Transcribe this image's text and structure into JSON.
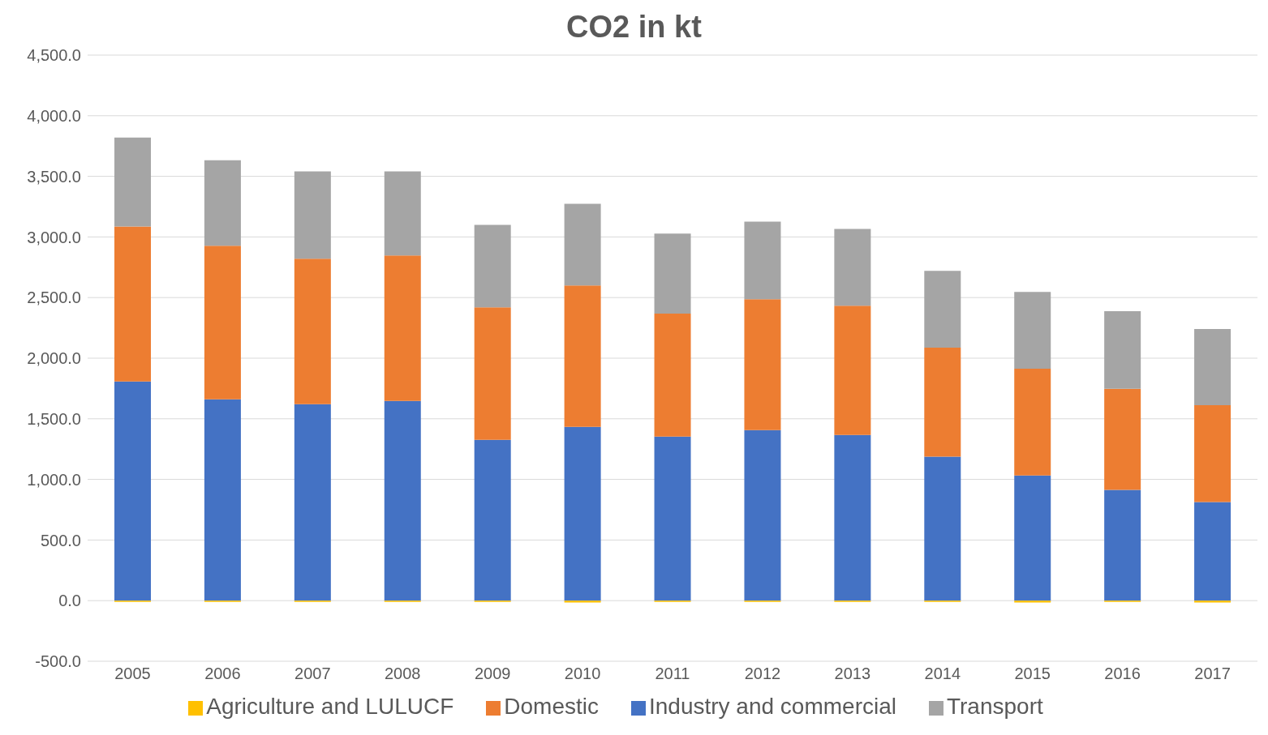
{
  "chart_data": {
    "type": "bar",
    "title": "CO2 in kt",
    "stacked": true,
    "categories": [
      "2005",
      "2006",
      "2007",
      "2008",
      "2009",
      "2010",
      "2011",
      "2012",
      "2013",
      "2014",
      "2015",
      "2016",
      "2017"
    ],
    "series": [
      {
        "name": "Industry and commercial",
        "color": "#4472c4",
        "values": [
          1807,
          1660,
          1620,
          1647,
          1327,
          1433,
          1353,
          1407,
          1367,
          1187,
          1033,
          913,
          813
        ]
      },
      {
        "name": "Domestic",
        "color": "#ed7d31",
        "values": [
          1280,
          1267,
          1200,
          1200,
          1093,
          1167,
          1014,
          1080,
          1066,
          900,
          880,
          834,
          800
        ]
      },
      {
        "name": "Transport",
        "color": "#a5a5a5",
        "values": [
          733,
          706,
          720,
          693,
          680,
          673,
          660,
          640,
          634,
          633,
          634,
          640,
          627
        ]
      },
      {
        "name": "Agriculture and LULUCF",
        "color": "#ffc000",
        "values": [
          -10,
          -10,
          -10,
          -10,
          -10,
          -15,
          -10,
          -10,
          -10,
          -10,
          -15,
          -10,
          -15
        ]
      }
    ],
    "ylim": [
      -500,
      4500
    ],
    "yticks": [
      {
        "value": -500,
        "label": "-500.0"
      },
      {
        "value": 0,
        "label": "0.0"
      },
      {
        "value": 500,
        "label": "500.0"
      },
      {
        "value": 1000,
        "label": "1,000.0"
      },
      {
        "value": 1500,
        "label": "1,500.0"
      },
      {
        "value": 2000,
        "label": "2,000.0"
      },
      {
        "value": 2500,
        "label": "2,500.0"
      },
      {
        "value": 3000,
        "label": "3,000.0"
      },
      {
        "value": 3500,
        "label": "3,500.0"
      },
      {
        "value": 4000,
        "label": "4,000.0"
      },
      {
        "value": 4500,
        "label": "4,500.0"
      }
    ],
    "grid": "y",
    "legend": "bottom"
  }
}
